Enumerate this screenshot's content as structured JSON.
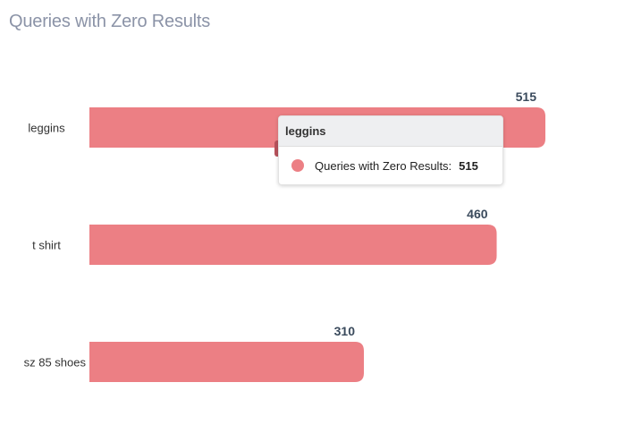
{
  "title": "Queries with Zero Results",
  "colors": {
    "bar": "#ec7f84",
    "bar_hover": "#b8535c",
    "category_text": "#333333",
    "value_text": "#3a4a5c"
  },
  "tooltip": {
    "category": "leggins",
    "series_name": "Queries with Zero Results:",
    "value": "515"
  },
  "chart_data": {
    "type": "bar",
    "orientation": "horizontal",
    "title": "Queries with Zero Results",
    "categories": [
      "leggins",
      "t shirt",
      "sz 85 shoes"
    ],
    "series": [
      {
        "name": "Queries with Zero Results",
        "values": [
          515,
          460,
          310
        ]
      }
    ],
    "xlim": [
      0,
      515
    ],
    "grid": false,
    "data_labels": true
  }
}
